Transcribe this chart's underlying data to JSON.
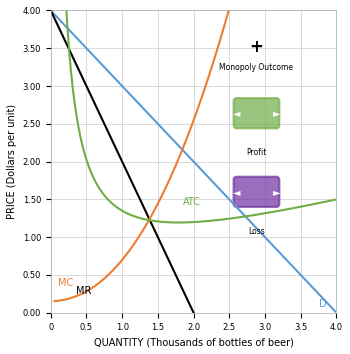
{
  "title": "",
  "xlabel": "QUANTITY (Thousands of bottles of beer)",
  "ylabel": "PRICE (Dollars per unit)",
  "xlim": [
    0,
    4.0
  ],
  "ylim": [
    0,
    4.0
  ],
  "xticks": [
    0,
    0.5,
    1.0,
    1.5,
    2.0,
    2.5,
    3.0,
    3.5,
    4.0
  ],
  "yticks": [
    0,
    0.5,
    1.0,
    1.5,
    2.0,
    2.5,
    3.0,
    3.5,
    4.0
  ],
  "background_color": "#ffffff",
  "panel_color": "#ffffff",
  "grid_color": "#cccccc",
  "curves": {
    "D": {
      "label": "D",
      "color": "#5b9bd5",
      "x": [
        0,
        4.0
      ],
      "y": [
        4.0,
        0.0
      ]
    },
    "MR": {
      "label": "MR",
      "color": "#000000",
      "x": [
        0,
        2.0
      ],
      "y": [
        4.0,
        0.0
      ]
    },
    "MC": {
      "label": "MC",
      "color": "#ed7d31",
      "type": "curve"
    },
    "ATC": {
      "label": "ATC",
      "color": "#70ad47",
      "type": "curve"
    }
  },
  "legend": {
    "monopoly_outcome_color": "#000000",
    "profit_color": "#70ad47",
    "loss_color": "#7030a0"
  },
  "font_size_axis_label": 7,
  "font_size_tick": 6,
  "font_size_legend": 7
}
